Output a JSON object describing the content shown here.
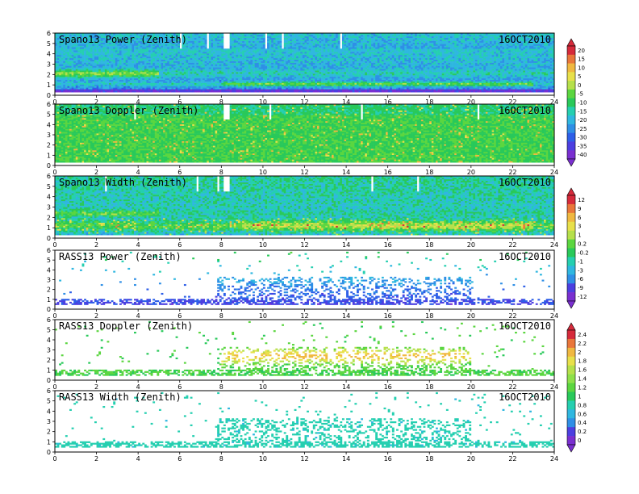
{
  "chart_data": [
    {
      "type": "heatmap",
      "title": "Spano13 Power (Zenith)",
      "date": "16OCT2010",
      "x_range": [
        0,
        24
      ],
      "y_range": [
        0,
        6
      ],
      "x_ticks": [
        "0",
        "2",
        "4",
        "6",
        "8",
        "10",
        "12",
        "14",
        "16",
        "18",
        "20",
        "22",
        "24"
      ],
      "y_ticks": [
        "0",
        "1",
        "2",
        "3",
        "4",
        "5",
        "6"
      ],
      "colorbar_ticks": [
        "20",
        "15",
        "10",
        "5",
        "0",
        "-5",
        "-10",
        "-15",
        "-20",
        "-25",
        "-30",
        "-35",
        "-40"
      ]
    },
    {
      "type": "heatmap",
      "title": "Spano13 Doppler (Zenith)",
      "date": "16OCT2010",
      "x_range": [
        0,
        24
      ],
      "y_range": [
        0,
        6
      ],
      "x_ticks": [
        "0",
        "2",
        "4",
        "6",
        "8",
        "10",
        "12",
        "14",
        "16",
        "18",
        "20",
        "22",
        "24"
      ],
      "y_ticks": [
        "0",
        "1",
        "2",
        "3",
        "4",
        "5",
        "6"
      ]
    },
    {
      "type": "heatmap",
      "title": "Spano13 Width (Zenith)",
      "date": "16OCT2010",
      "x_range": [
        0,
        24
      ],
      "y_range": [
        0,
        6
      ],
      "x_ticks": [
        "0",
        "2",
        "4",
        "6",
        "8",
        "10",
        "12",
        "14",
        "16",
        "18",
        "20",
        "22",
        "24"
      ],
      "y_ticks": [
        "0",
        "1",
        "2",
        "3",
        "4",
        "5",
        "6"
      ],
      "colorbar_ticks": [
        "12",
        "9",
        "6",
        "3",
        "1",
        "0.2",
        "-0.2",
        "-1",
        "-3",
        "-6",
        "-9",
        "-12"
      ]
    },
    {
      "type": "heatmap",
      "title": "RASS13 Power (Zenith)",
      "date": "16OCT2010",
      "x_range": [
        0,
        24
      ],
      "y_range": [
        0,
        6
      ],
      "x_ticks": [
        "0",
        "2",
        "4",
        "6",
        "8",
        "10",
        "12",
        "14",
        "16",
        "18",
        "20",
        "22",
        "24"
      ],
      "y_ticks": [
        "0",
        "1",
        "2",
        "3",
        "4",
        "5",
        "6"
      ]
    },
    {
      "type": "heatmap",
      "title": "RASS13 Doppler (Zenith)",
      "date": "16OCT2010",
      "x_range": [
        0,
        24
      ],
      "y_range": [
        0,
        6
      ],
      "x_ticks": [
        "0",
        "2",
        "4",
        "6",
        "8",
        "10",
        "12",
        "14",
        "16",
        "18",
        "20",
        "22",
        "24"
      ],
      "y_ticks": [
        "0",
        "1",
        "2",
        "3",
        "4",
        "5",
        "6"
      ],
      "colorbar_ticks": [
        "2.4",
        "2.2",
        "2",
        "1.8",
        "1.6",
        "1.4",
        "1.2",
        "1",
        "0.8",
        "0.6",
        "0.4",
        "0.2",
        "0"
      ]
    },
    {
      "type": "heatmap",
      "title": "RASS13 Width (Zenith)",
      "date": "16OCT2010",
      "x_range": [
        0,
        24
      ],
      "y_range": [
        0,
        6
      ],
      "x_ticks": [
        "0",
        "2",
        "4",
        "6",
        "8",
        "10",
        "12",
        "14",
        "16",
        "18",
        "20",
        "22",
        "24"
      ],
      "y_ticks": [
        "0",
        "1",
        "2",
        "3",
        "4",
        "5",
        "6"
      ]
    }
  ]
}
